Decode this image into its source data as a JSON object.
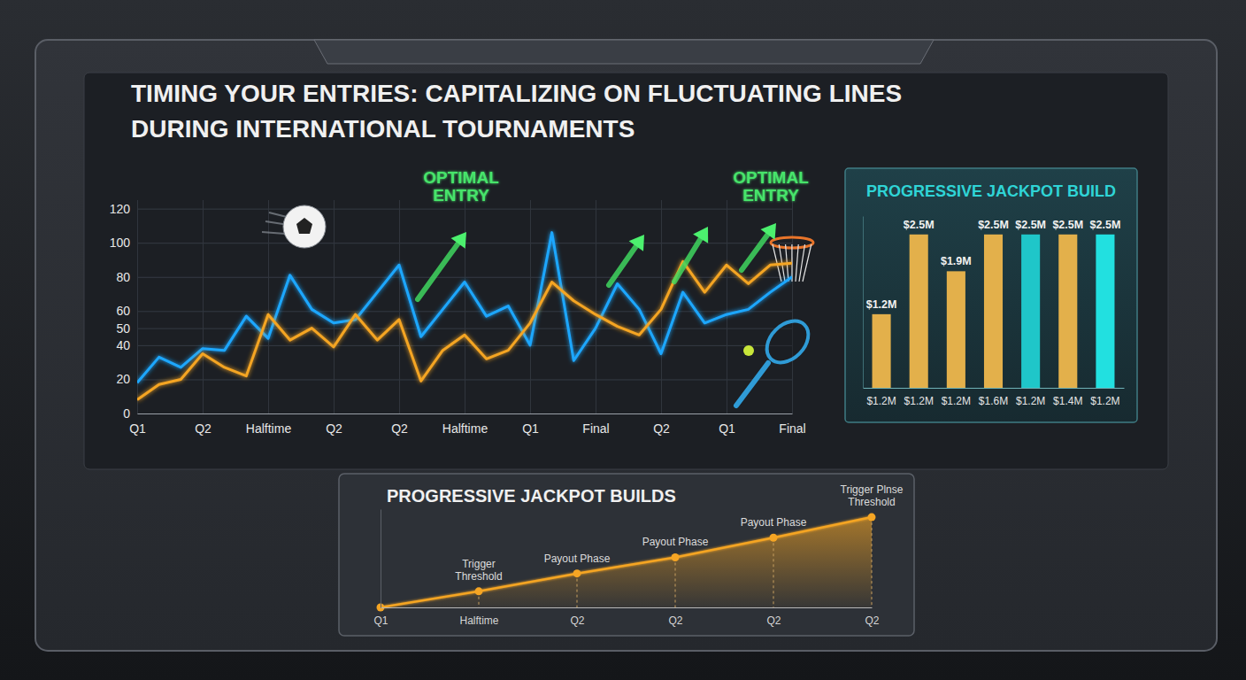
{
  "chart_data": [
    {
      "type": "line",
      "title": "TIMING YOUR ENTRIES: CAPITALIZING ON FLUCTUATING LINES DURING INTERNATIONAL TOURNAMENTS",
      "annotations": [
        "OPTIMAL ENTRY",
        "OPTIMAL ENTRY"
      ],
      "categories": [
        "Q1",
        null,
        null,
        "Q2",
        null,
        null,
        "Halftime",
        null,
        null,
        "Q2",
        null,
        null,
        "Q2",
        null,
        null,
        "Halftime",
        null,
        null,
        "Q1",
        null,
        null,
        "Final",
        null,
        null,
        "Q2",
        null,
        null,
        "Q1",
        null,
        null,
        "Final"
      ],
      "series": [
        {
          "color": "#1ea7ff",
          "values": [
            18,
            33,
            27,
            38,
            37,
            57,
            44,
            81,
            61,
            53,
            55,
            71,
            87,
            45,
            61,
            77,
            57,
            63,
            40,
            106,
            31,
            50,
            76,
            61,
            35,
            71,
            53,
            58,
            61,
            71,
            80
          ]
        },
        {
          "color": "#f5a524",
          "values": [
            8,
            17,
            20,
            35,
            27,
            22,
            58,
            43,
            50,
            39,
            58,
            43,
            55,
            19,
            37,
            46,
            32,
            37,
            53,
            77,
            66,
            58,
            51,
            46,
            61,
            89,
            71,
            87,
            76,
            87,
            88
          ]
        }
      ],
      "ylim": [
        0,
        125
      ],
      "yticks": [
        0,
        20,
        40,
        50,
        60,
        80,
        100,
        120
      ],
      "grid": true
    },
    {
      "type": "bar",
      "title": "PROGRESSIVE JACKPOT BUILD",
      "categories": [
        "$1.2M",
        "$1.2M",
        "$1.2M",
        "$1.6M",
        "$1.2M",
        "$1.4M",
        "$1.2M"
      ],
      "values": [
        1200000,
        2500000,
        1900000,
        2500000,
        2500000,
        2500000,
        2500000
      ],
      "value_labels": [
        "$1.2M",
        "$2.5M",
        "$1.9M",
        "$2.5M",
        "$2.5M",
        "$2.5M",
        "$2.5M"
      ],
      "colors": [
        "#e3b04b",
        "#e3b04b",
        "#e3b04b",
        "#e3b04b",
        "#1fc6c9",
        "#e3b04b",
        "#22e0e0"
      ],
      "ylim": [
        0,
        2800000
      ],
      "data_labels": true,
      "tick_labels": "x"
    },
    {
      "type": "area",
      "title": "PROGRESSIVE JACKPOT BUILDS",
      "categories": [
        "Q1",
        "Halftime",
        "Q2",
        "Q2",
        "Q2",
        "Q2"
      ],
      "annotations": [
        null,
        "Trigger Threshold",
        "Payout Phase",
        "Payout Phase",
        "Payout Phase",
        "Trigger Plnse Threshold"
      ],
      "values": [
        0,
        18,
        38,
        56,
        78,
        101
      ],
      "color": "#f5a524",
      "marker": "circle",
      "ylim": [
        0,
        110
      ],
      "tick_labels": "x"
    }
  ]
}
